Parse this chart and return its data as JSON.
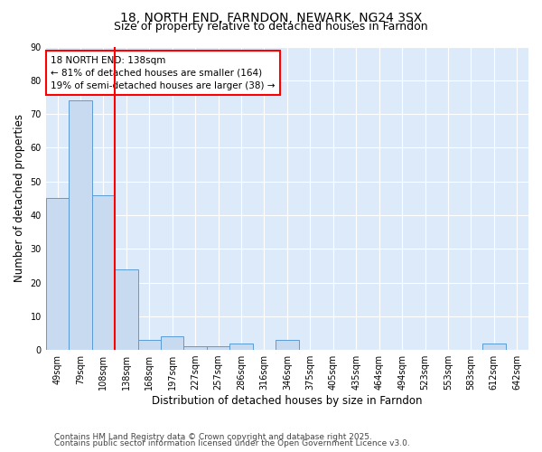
{
  "title": "18, NORTH END, FARNDON, NEWARK, NG24 3SX",
  "subtitle": "Size of property relative to detached houses in Farndon",
  "xlabel": "Distribution of detached houses by size in Farndon",
  "ylabel": "Number of detached properties",
  "footnote1": "Contains HM Land Registry data © Crown copyright and database right 2025.",
  "footnote2": "Contains public sector information licensed under the Open Government Licence v3.0.",
  "categories": [
    "49sqm",
    "79sqm",
    "108sqm",
    "138sqm",
    "168sqm",
    "197sqm",
    "227sqm",
    "257sqm",
    "286sqm",
    "316sqm",
    "346sqm",
    "375sqm",
    "405sqm",
    "435sqm",
    "464sqm",
    "494sqm",
    "523sqm",
    "553sqm",
    "583sqm",
    "612sqm",
    "642sqm"
  ],
  "values": [
    45,
    74,
    46,
    24,
    3,
    4,
    1,
    1,
    2,
    0,
    3,
    0,
    0,
    0,
    0,
    0,
    0,
    0,
    0,
    2,
    0
  ],
  "bar_color": "#c8daf0",
  "bar_edge_color": "#5b9bd5",
  "red_line_index": 2,
  "annotation_text": "18 NORTH END: 138sqm\n← 81% of detached houses are smaller (164)\n19% of semi-detached houses are larger (38) →",
  "annotation_box_color": "white",
  "annotation_box_edge_color": "red",
  "red_line_color": "red",
  "ylim": [
    0,
    90
  ],
  "yticks": [
    0,
    10,
    20,
    30,
    40,
    50,
    60,
    70,
    80,
    90
  ],
  "background_color": "#ddeafa",
  "grid_color": "white",
  "title_fontsize": 10,
  "subtitle_fontsize": 9,
  "axis_label_fontsize": 8.5,
  "tick_fontsize": 7,
  "annotation_fontsize": 7.5,
  "footnote_fontsize": 6.5
}
